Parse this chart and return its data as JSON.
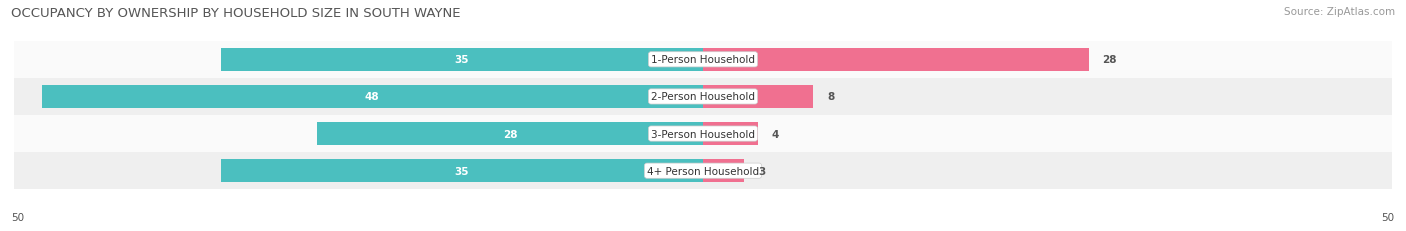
{
  "title": "OCCUPANCY BY OWNERSHIP BY HOUSEHOLD SIZE IN SOUTH WAYNE",
  "source": "Source: ZipAtlas.com",
  "categories": [
    "1-Person Household",
    "2-Person Household",
    "3-Person Household",
    "4+ Person Household"
  ],
  "owner_values": [
    35,
    48,
    28,
    35
  ],
  "renter_values": [
    28,
    8,
    4,
    3
  ],
  "owner_color": "#4BBFBF",
  "renter_color": "#F07090",
  "axis_max": 50,
  "row_bg_even": "#EFEFEF",
  "row_bg_odd": "#FAFAFA",
  "title_fontsize": 9.5,
  "source_fontsize": 7.5,
  "label_fontsize": 7.5,
  "value_fontsize": 7.5,
  "legend_fontsize": 8
}
